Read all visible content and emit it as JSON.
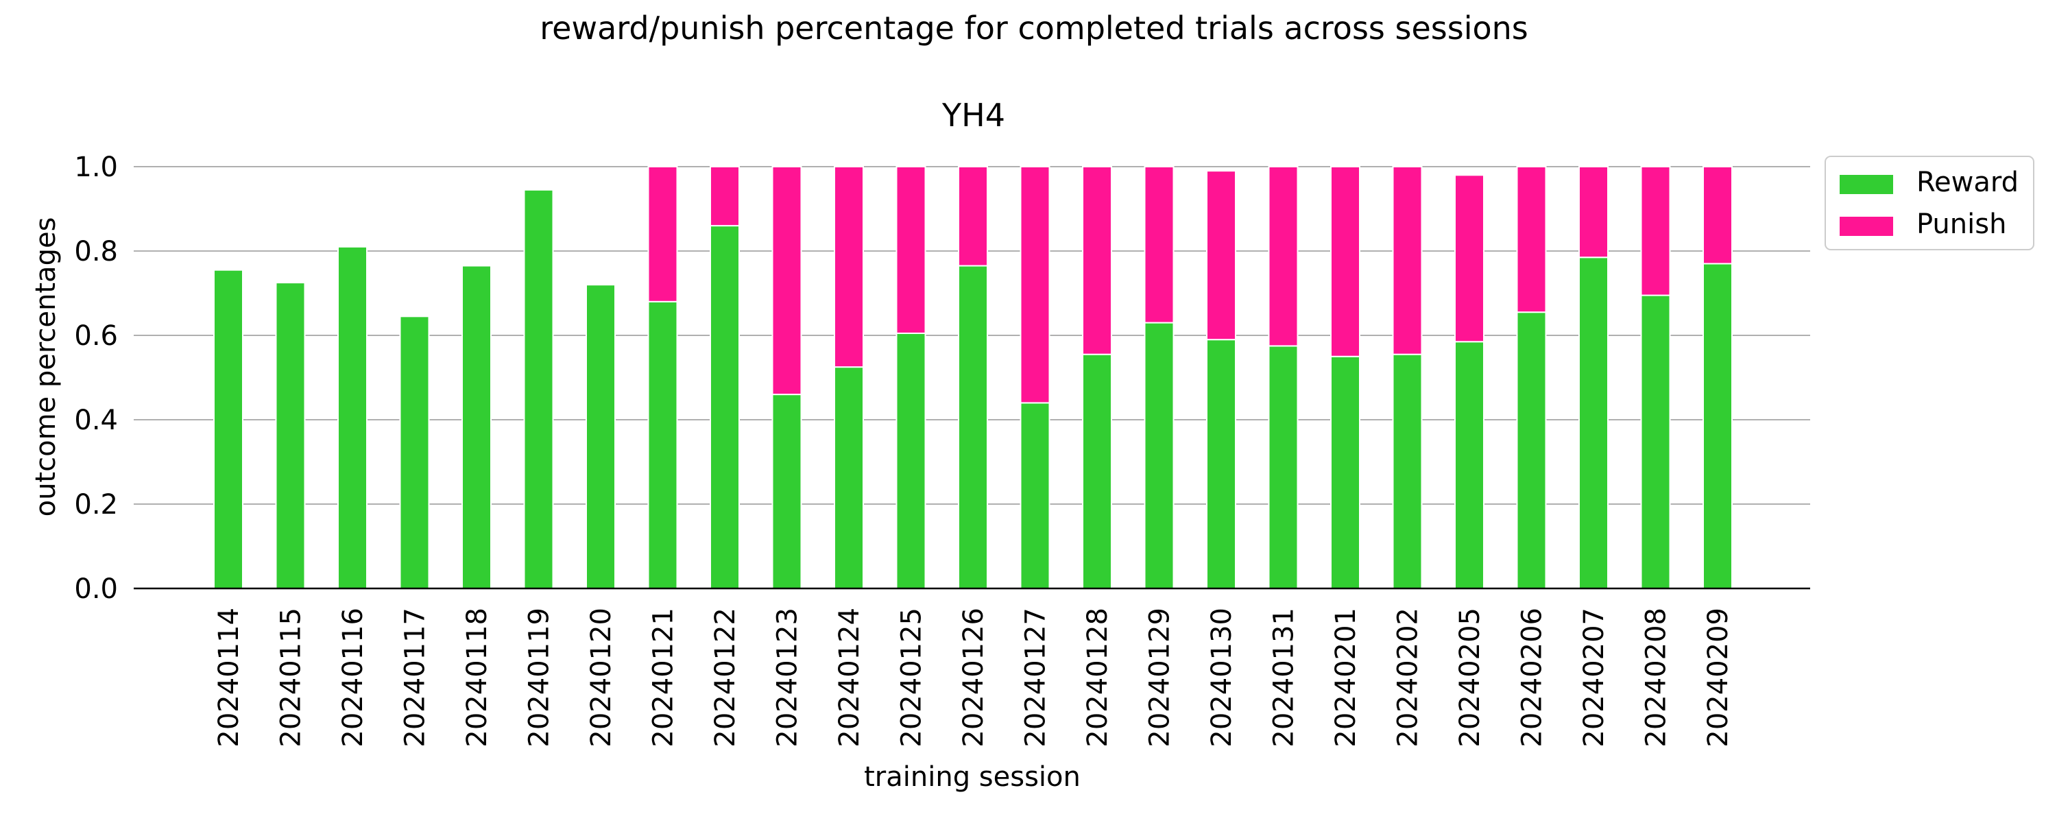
{
  "chart_data": {
    "type": "bar",
    "stacked": true,
    "suptitle": "reward/punish percentage for completed trials across sessions",
    "title": "YH4",
    "xlabel": "training session",
    "ylabel": "outcome percentages",
    "ylim": [
      0,
      1.0
    ],
    "yticks": [
      "0.0",
      "0.2",
      "0.4",
      "0.6",
      "0.8",
      "1.0"
    ],
    "grid": "horizontal",
    "legend_position": "outside-top-right",
    "categories": [
      "20240114",
      "20240115",
      "20240116",
      "20240117",
      "20240118",
      "20240119",
      "20240120",
      "20240121",
      "20240122",
      "20240123",
      "20240124",
      "20240125",
      "20240126",
      "20240127",
      "20240128",
      "20240129",
      "20240130",
      "20240131",
      "20240201",
      "20240202",
      "20240205",
      "20240206",
      "20240207",
      "20240208",
      "20240209"
    ],
    "series": [
      {
        "name": "Reward",
        "color": "#32cd32",
        "values": [
          0.755,
          0.725,
          0.81,
          0.645,
          0.765,
          0.945,
          0.72,
          0.68,
          0.86,
          0.46,
          0.525,
          0.605,
          0.765,
          0.44,
          0.555,
          0.63,
          0.59,
          0.575,
          0.55,
          0.555,
          0.585,
          0.655,
          0.785,
          0.695,
          0.77
        ]
      },
      {
        "name": "Punish",
        "color": "#ff1493",
        "values": [
          0,
          0,
          0,
          0,
          0,
          0,
          0,
          0.32,
          0.14,
          0.54,
          0.475,
          0.395,
          0.235,
          0.56,
          0.445,
          0.37,
          0.4,
          0.425,
          0.45,
          0.445,
          0.395,
          0.345,
          0.215,
          0.305,
          0.23
        ]
      }
    ]
  }
}
